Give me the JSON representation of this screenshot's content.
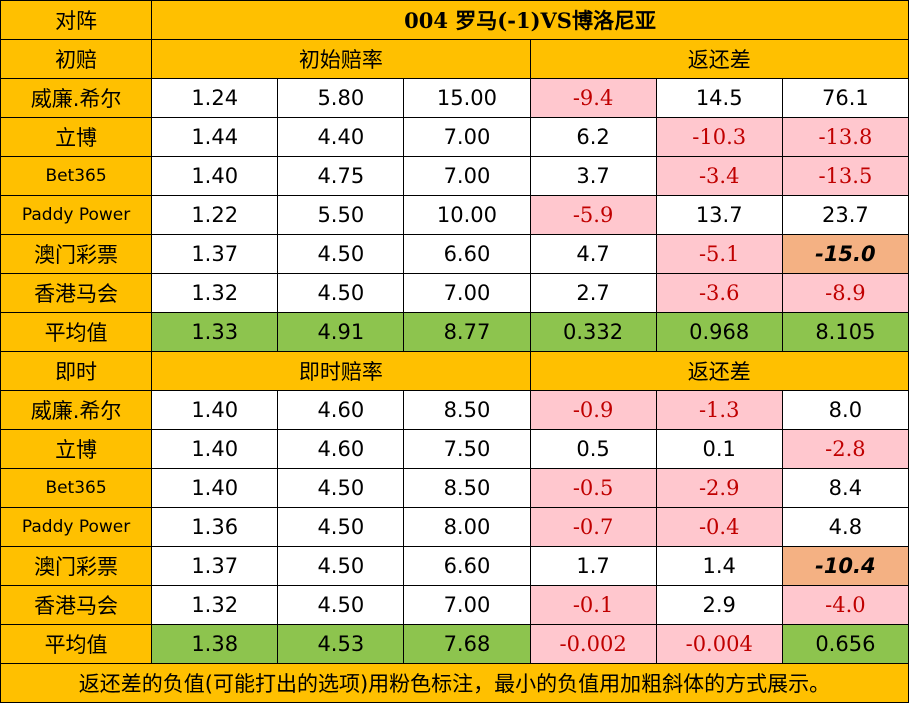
{
  "header": {
    "match_label": "对阵",
    "match_title": "004  罗马(-1)VS博洛尼亚"
  },
  "initial": {
    "section_label": "初赔",
    "odds_label": "初始赔率",
    "diff_label": "返还差",
    "rows": [
      {
        "bookmaker": "威廉.希尔",
        "odds": [
          "1.24",
          "5.80",
          "15.00"
        ],
        "diffs": [
          "-9.4",
          "14.5",
          "76.1"
        ]
      },
      {
        "bookmaker": "立博",
        "odds": [
          "1.44",
          "4.40",
          "7.00"
        ],
        "diffs": [
          "6.2",
          "-10.3",
          "-13.8"
        ]
      },
      {
        "bookmaker": "Bet365",
        "odds": [
          "1.40",
          "4.75",
          "7.00"
        ],
        "diffs": [
          "3.7",
          "-3.4",
          "-13.5"
        ]
      },
      {
        "bookmaker": "Paddy Power",
        "odds": [
          "1.22",
          "5.50",
          "10.00"
        ],
        "diffs": [
          "-5.9",
          "13.7",
          "23.7"
        ]
      },
      {
        "bookmaker": "澳门彩票",
        "odds": [
          "1.37",
          "4.50",
          "6.60"
        ],
        "diffs": [
          "4.7",
          "-5.1",
          "-15.0"
        ]
      },
      {
        "bookmaker": "香港马会",
        "odds": [
          "1.32",
          "4.50",
          "7.00"
        ],
        "diffs": [
          "2.7",
          "-3.6",
          "-8.9"
        ]
      }
    ],
    "average": {
      "label": "平均值",
      "odds": [
        "1.33",
        "4.91",
        "8.77"
      ],
      "diffs": [
        "0.332",
        "0.968",
        "8.105"
      ]
    }
  },
  "live": {
    "section_label": "即时",
    "odds_label": "即时赔率",
    "diff_label": "返还差",
    "rows": [
      {
        "bookmaker": "威廉.希尔",
        "odds": [
          "1.40",
          "4.60",
          "8.50"
        ],
        "diffs": [
          "-0.9",
          "-1.3",
          "8.0"
        ]
      },
      {
        "bookmaker": "立博",
        "odds": [
          "1.40",
          "4.60",
          "7.50"
        ],
        "diffs": [
          "0.5",
          "0.1",
          "-2.8"
        ]
      },
      {
        "bookmaker": "Bet365",
        "odds": [
          "1.40",
          "4.50",
          "8.50"
        ],
        "diffs": [
          "-0.5",
          "-2.9",
          "8.4"
        ]
      },
      {
        "bookmaker": "Paddy Power",
        "odds": [
          "1.36",
          "4.50",
          "8.00"
        ],
        "diffs": [
          "-0.7",
          "-0.4",
          "4.8"
        ]
      },
      {
        "bookmaker": "澳门彩票",
        "odds": [
          "1.37",
          "4.50",
          "6.60"
        ],
        "diffs": [
          "1.7",
          "1.4",
          "-10.4"
        ]
      },
      {
        "bookmaker": "香港马会",
        "odds": [
          "1.32",
          "4.50",
          "7.00"
        ],
        "diffs": [
          "-0.1",
          "2.9",
          "-4.0"
        ]
      }
    ],
    "average": {
      "label": "平均值",
      "odds": [
        "1.38",
        "4.53",
        "7.68"
      ],
      "diffs": [
        "-0.002",
        "-0.004",
        "0.656"
      ]
    }
  },
  "footnote": "返还差的负值(可能打出的选项)用粉色标注，最小的负值用加粗斜体的方式展示。",
  "colors": {
    "header_bg": "#ffc000",
    "average_bg": "#8dc44e",
    "negative_bg": "#ffc7ce",
    "negative_text": "#c00000",
    "min_negative_bg": "#f4b183"
  }
}
